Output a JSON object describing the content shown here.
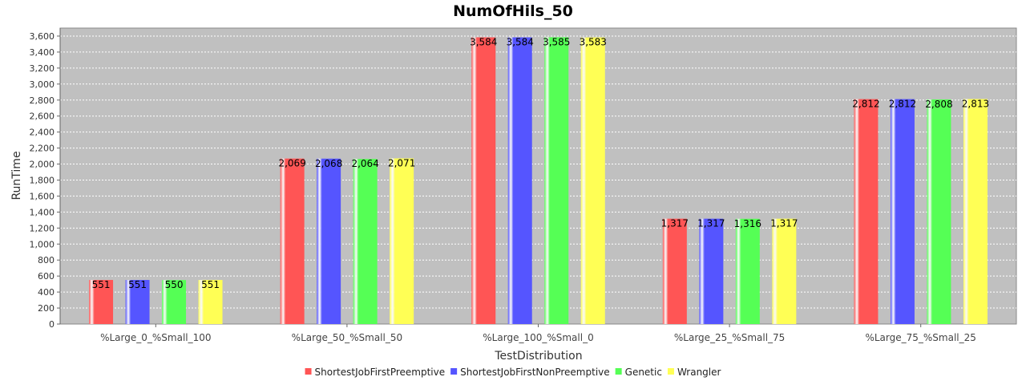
{
  "chart_data": {
    "type": "bar",
    "title": "NumOfHils_50",
    "xlabel": "TestDistribution",
    "ylabel": "RunTime",
    "ylim": [
      0,
      3700
    ],
    "yticks": [
      0,
      200,
      400,
      600,
      800,
      1000,
      1200,
      1400,
      1600,
      1800,
      2000,
      2200,
      2400,
      2600,
      2800,
      3000,
      3200,
      3400,
      3600
    ],
    "ytick_labels": [
      "0",
      "200",
      "400",
      "600",
      "800",
      "1,000",
      "1,200",
      "1,400",
      "1,600",
      "1,800",
      "2,000",
      "2,200",
      "2,400",
      "2,600",
      "2,800",
      "3,000",
      "3,200",
      "3,400",
      "3,600"
    ],
    "grid": true,
    "legend_position": "bottom",
    "background": "#c0c0c0",
    "categories": [
      "%Large_0_%Small_100",
      "%Large_50_%Small_50",
      "%Large_100_%Small_0",
      "%Large_25_%Small_75",
      "%Large_75_%Small_25"
    ],
    "series": [
      {
        "name": "ShortestJobFirstPreemptive",
        "color": "#ff5555",
        "values": [
          551,
          2069,
          3584,
          1317,
          2812
        ],
        "labels": [
          "551",
          "2,069",
          "3,584",
          "1,317",
          "2,812"
        ]
      },
      {
        "name": "ShortestJobFirstNonPreemptive",
        "color": "#5555ff",
        "values": [
          551,
          2068,
          3584,
          1317,
          2812
        ],
        "labels": [
          "551",
          "2,068",
          "3,584",
          "1,317",
          "2,812"
        ]
      },
      {
        "name": "Genetic",
        "color": "#55ff55",
        "values": [
          550,
          2064,
          3585,
          1316,
          2808
        ],
        "labels": [
          "550",
          "2,064",
          "3,585",
          "1,316",
          "2,808"
        ]
      },
      {
        "name": "Wrangler",
        "color": "#ffff55",
        "values": [
          551,
          2071,
          3583,
          1317,
          2813
        ],
        "labels": [
          "551",
          "2,071",
          "3,583",
          "1,317",
          "2,813"
        ]
      }
    ]
  }
}
